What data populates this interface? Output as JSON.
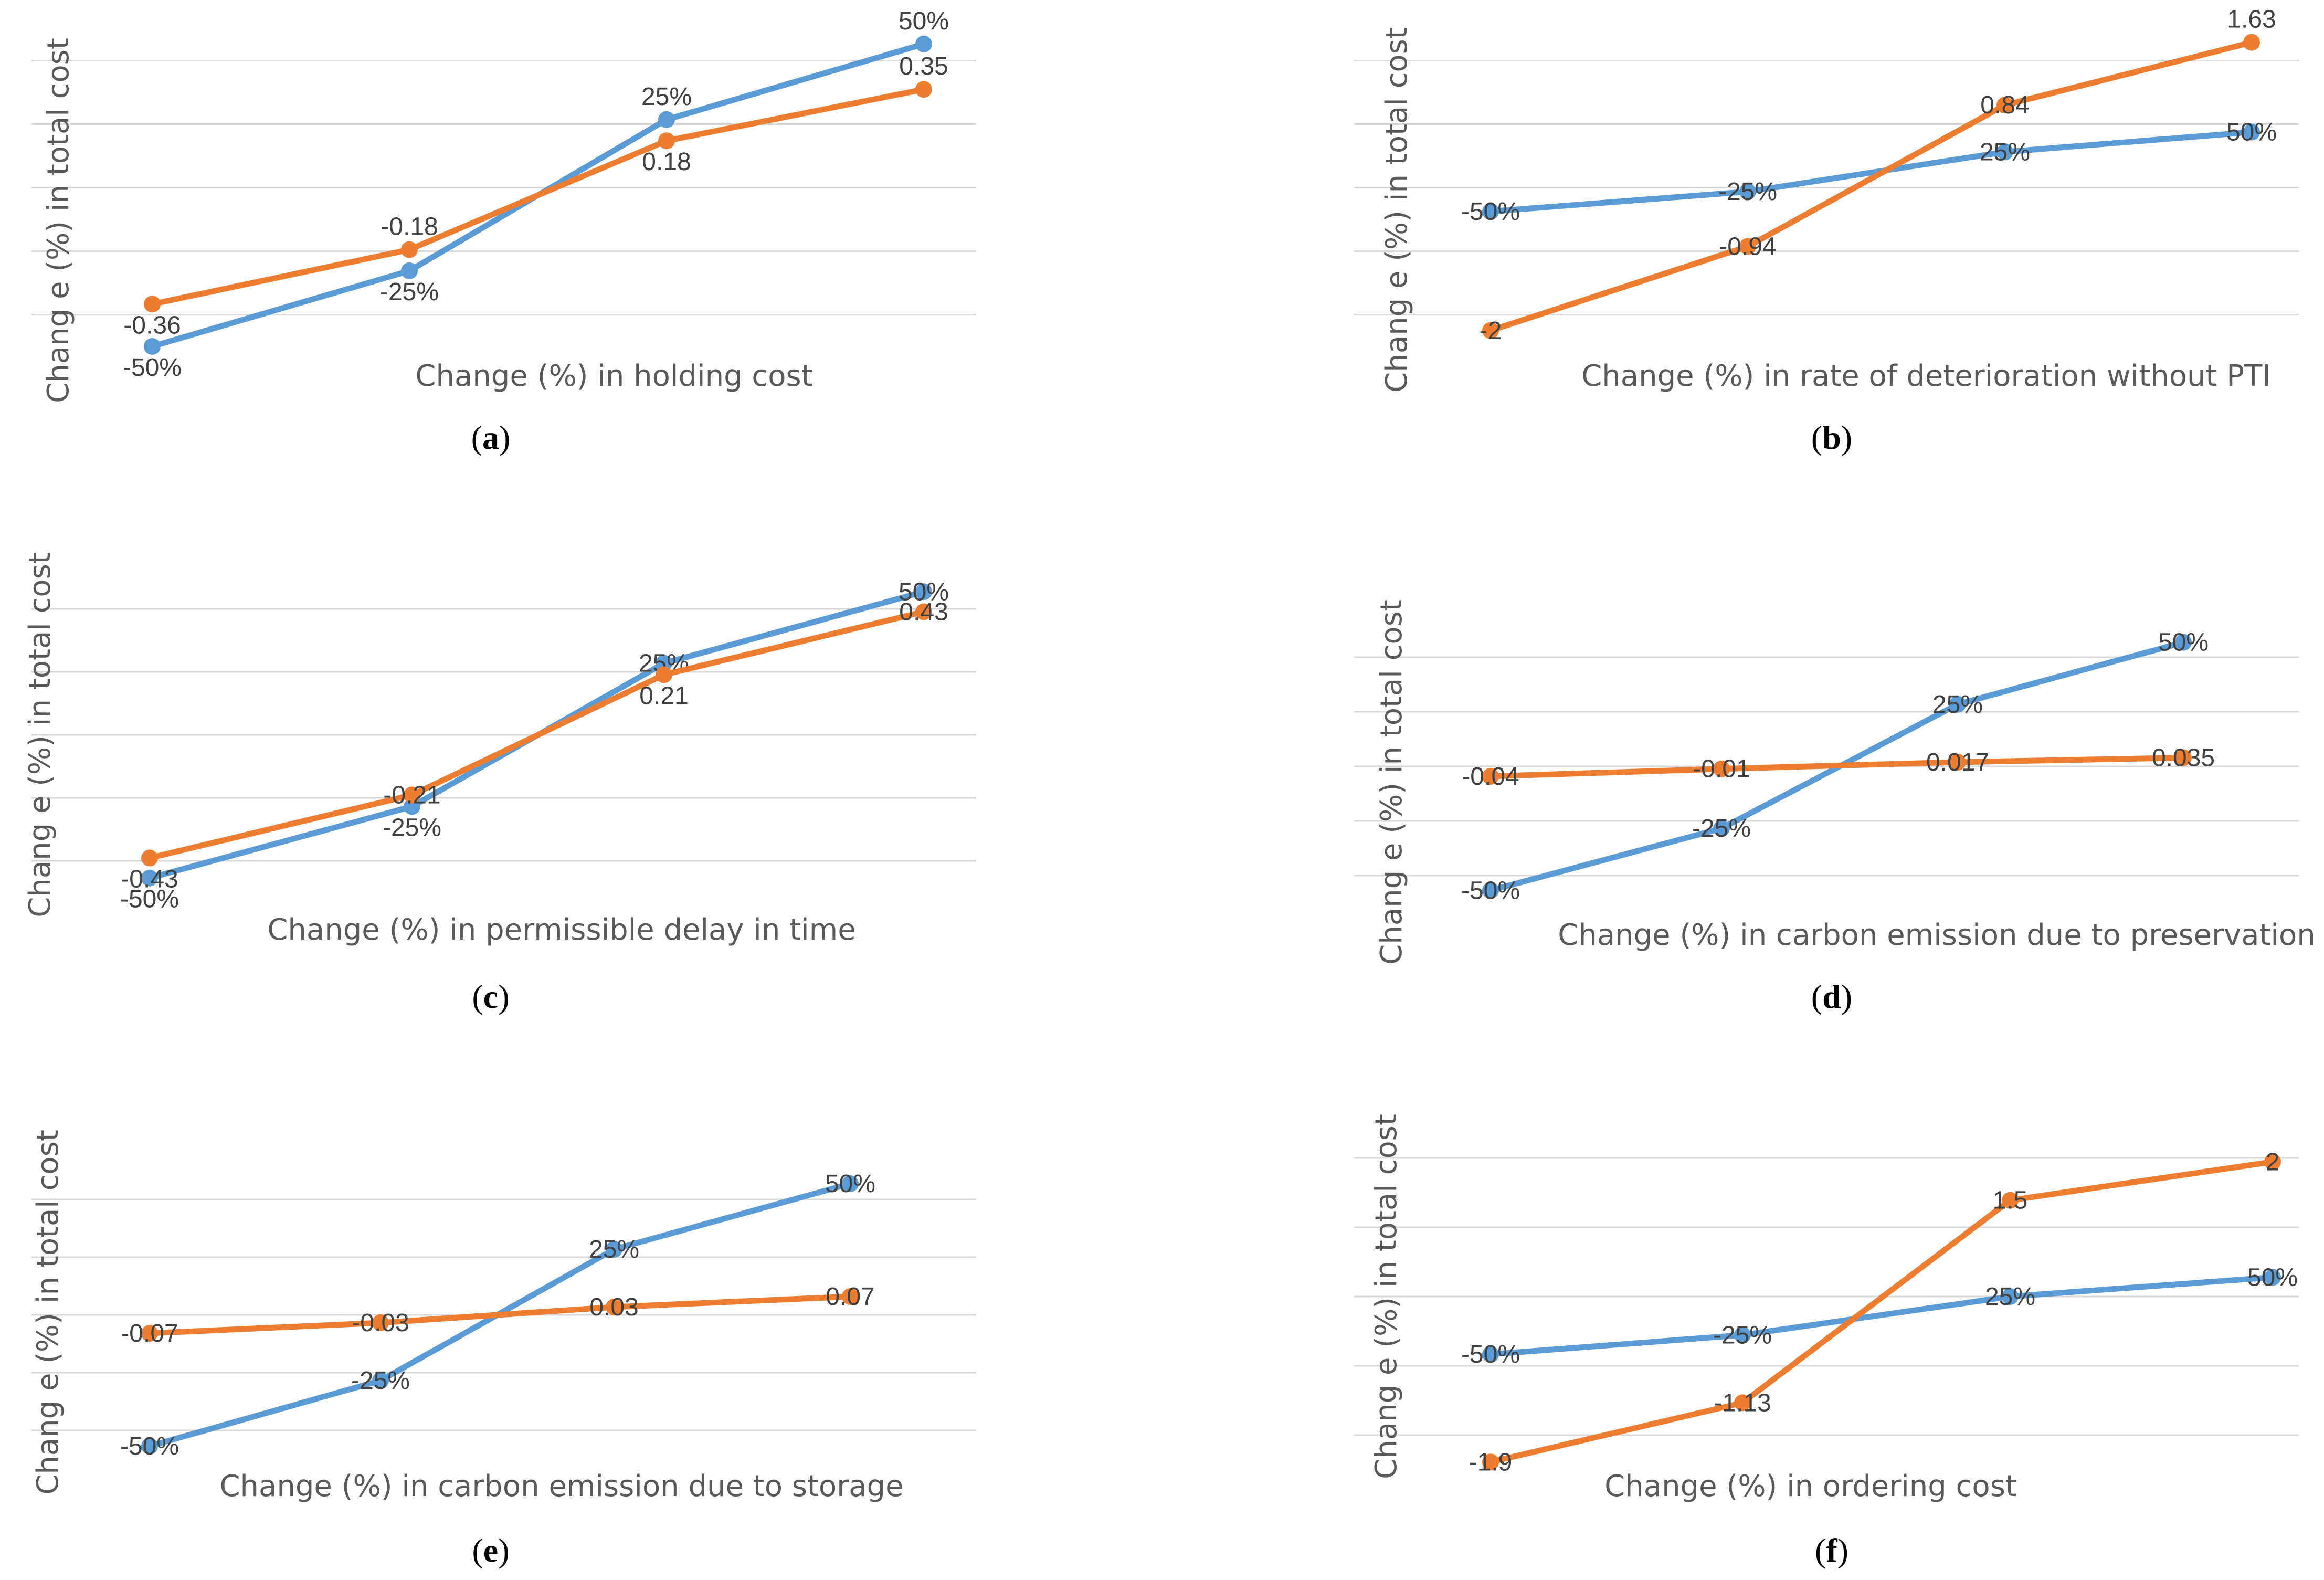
{
  "colors": {
    "percent_series": "#5B9BD5",
    "value_series": "#ED7D31",
    "grid": "#D9D9D9",
    "axis_text": "#595959",
    "label_text": "#404040"
  },
  "chart_data": [
    {
      "type": "line",
      "caption": "(a)",
      "caption_letter": "a",
      "xlabel": "Change (%) in holding cost",
      "ylabel": "Chang e (%) in total cost",
      "x": [
        1,
        2,
        3,
        4
      ],
      "ylim": [
        -0.5,
        0.55
      ],
      "grid": true,
      "series": [
        {
          "values": [
            -0.5,
            -0.25,
            0.25,
            0.5
          ],
          "labels": [
            "-50%",
            "-25%",
            "25%",
            "50%"
          ],
          "color": "#5B9BD5",
          "label_pos": [
            "below",
            "below",
            "above",
            "above"
          ]
        },
        {
          "values": [
            -0.36,
            -0.18,
            0.18,
            0.35
          ],
          "labels": [
            "-0.36",
            "-0.18",
            "0.18",
            "0.35"
          ],
          "color": "#ED7D31",
          "label_pos": [
            "below",
            "above",
            "below",
            "above"
          ]
        }
      ]
    },
    {
      "type": "line",
      "caption": "(b)",
      "caption_letter": "b",
      "xlabel": "Change (%) in rate of deterioration without PTI",
      "ylabel": "Chang e (%) in total cost",
      "x": [
        1,
        2,
        3,
        4
      ],
      "ylim": [
        -2.2,
        1.8
      ],
      "grid": true,
      "series": [
        {
          "values": [
            -0.5,
            -0.25,
            0.25,
            0.5
          ],
          "labels": [
            "-50%",
            "-25%",
            "25%",
            "50%"
          ],
          "color": "#5B9BD5",
          "label_pos": [
            "center",
            "center",
            "center",
            "center"
          ]
        },
        {
          "values": [
            -2,
            -0.94,
            0.84,
            1.63
          ],
          "labels": [
            "-2",
            "-0.94",
            "0.84",
            "1.63"
          ],
          "color": "#ED7D31",
          "label_pos": [
            "center",
            "center",
            "center",
            "above"
          ]
        }
      ]
    },
    {
      "type": "line",
      "caption": "(c)",
      "caption_letter": "c",
      "xlabel": "Change (%) in permissible delay in time",
      "ylabel": "Chang e (%) in total cost",
      "x": [
        1,
        2,
        3,
        4
      ],
      "ylim": [
        -0.55,
        0.55
      ],
      "grid": true,
      "series": [
        {
          "values": [
            -0.5,
            -0.25,
            0.25,
            0.5
          ],
          "labels": [
            "-50%",
            "-25%",
            "25%",
            "50%"
          ],
          "color": "#5B9BD5",
          "label_pos": [
            "below",
            "below",
            "center",
            "center"
          ]
        },
        {
          "values": [
            -0.43,
            -0.21,
            0.21,
            0.43
          ],
          "labels": [
            "-0.43",
            "-0.21",
            "0.21",
            "0.43"
          ],
          "color": "#ED7D31",
          "label_pos": [
            "below",
            "center",
            "below",
            "center"
          ]
        }
      ]
    },
    {
      "type": "line",
      "caption": "(d)",
      "caption_letter": "d",
      "xlabel": "Change (%) in carbon emission due to preservation",
      "ylabel": "Chang e (%) in total cost",
      "x": [
        1,
        2,
        3,
        4
      ],
      "ylim": [
        -0.55,
        0.55
      ],
      "grid": true,
      "series": [
        {
          "values": [
            -0.5,
            -0.25,
            0.25,
            0.5
          ],
          "labels": [
            "-50%",
            "-25%",
            "25%",
            "50%"
          ],
          "color": "#5B9BD5",
          "label_pos": [
            "center",
            "center",
            "center",
            "center"
          ]
        },
        {
          "values": [
            -0.04,
            -0.01,
            0.017,
            0.035
          ],
          "labels": [
            "-0.04",
            "-0.01",
            "0.017",
            "0.035"
          ],
          "color": "#ED7D31",
          "label_pos": [
            "center",
            "center",
            "center",
            "center"
          ]
        }
      ]
    },
    {
      "type": "line",
      "caption": "(e)",
      "caption_letter": "e",
      "xlabel": "Change (%) in carbon emission due to storage",
      "ylabel": "Chang e (%) in total cost",
      "x": [
        1,
        2,
        3,
        4
      ],
      "ylim": [
        -0.55,
        0.55
      ],
      "grid": true,
      "series": [
        {
          "values": [
            -0.5,
            -0.25,
            0.25,
            0.5
          ],
          "labels": [
            "-50%",
            "-25%",
            "25%",
            "50%"
          ],
          "color": "#5B9BD5",
          "label_pos": [
            "center",
            "center",
            "center",
            "center"
          ]
        },
        {
          "values": [
            -0.07,
            -0.03,
            0.03,
            0.07
          ],
          "labels": [
            "-0.07",
            "-0.03",
            "0.03",
            "0.07"
          ],
          "color": "#ED7D31",
          "label_pos": [
            "center",
            "center",
            "center",
            "center"
          ]
        }
      ]
    },
    {
      "type": "line",
      "caption": "(f)",
      "caption_letter": "f",
      "xlabel": "Change (%) in ordering cost",
      "ylabel": "Chang e (%) in total cost",
      "x": [
        1,
        2,
        3,
        4
      ],
      "ylim": [
        -2.0,
        2.5
      ],
      "grid": true,
      "series": [
        {
          "values": [
            -0.5,
            -0.25,
            0.25,
            0.5
          ],
          "labels": [
            "-50%",
            "-25%",
            "25%",
            "50%"
          ],
          "color": "#5B9BD5",
          "label_pos": [
            "center",
            "center",
            "center",
            "center"
          ]
        },
        {
          "values": [
            -1.9,
            -1.13,
            1.5,
            2
          ],
          "labels": [
            "-1.9",
            "-1.13",
            "1.5",
            "2"
          ],
          "color": "#ED7D31",
          "label_pos": [
            "center",
            "center",
            "center",
            "center"
          ]
        }
      ]
    }
  ]
}
